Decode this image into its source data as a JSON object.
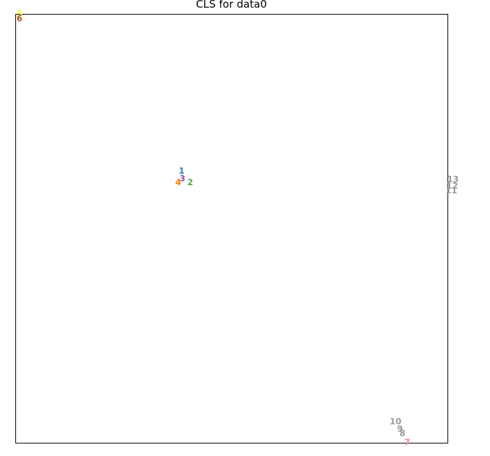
{
  "chart_data": {
    "type": "scatter",
    "title": "CLS for data0",
    "xlabel": "",
    "ylabel": "",
    "xlim": [
      0,
      100
    ],
    "ylim": [
      0,
      100
    ],
    "grid": false,
    "points": [
      {
        "label": "1",
        "x": 38.4,
        "y": 63.5,
        "color": "#377eb8"
      },
      {
        "label": "2",
        "x": 40.4,
        "y": 60.8,
        "color": "#4daf4a"
      },
      {
        "label": "3",
        "x": 38.6,
        "y": 61.7,
        "color": "#984ea3"
      },
      {
        "label": "4",
        "x": 37.6,
        "y": 60.8,
        "color": "#ff7f00"
      },
      {
        "label": "5",
        "x": 0.9,
        "y": 100.0,
        "color": "#ffff33"
      },
      {
        "label": "6",
        "x": 0.9,
        "y": 99.0,
        "color": "#a65628"
      },
      {
        "label": "7",
        "x": 90.6,
        "y": 0.2,
        "color": "#f781bf"
      },
      {
        "label": "8",
        "x": 89.5,
        "y": 2.3,
        "color": "#999999"
      },
      {
        "label": "9",
        "x": 88.9,
        "y": 3.3,
        "color": "#999999"
      },
      {
        "label": "10",
        "x": 87.9,
        "y": 5.0,
        "color": "#999999"
      },
      {
        "label": "11",
        "x": 100.8,
        "y": 58.9,
        "color": "#999999"
      },
      {
        "label": "12",
        "x": 101.0,
        "y": 60.0,
        "color": "#999999"
      },
      {
        "label": "13",
        "x": 101.2,
        "y": 61.5,
        "color": "#999999"
      }
    ]
  }
}
